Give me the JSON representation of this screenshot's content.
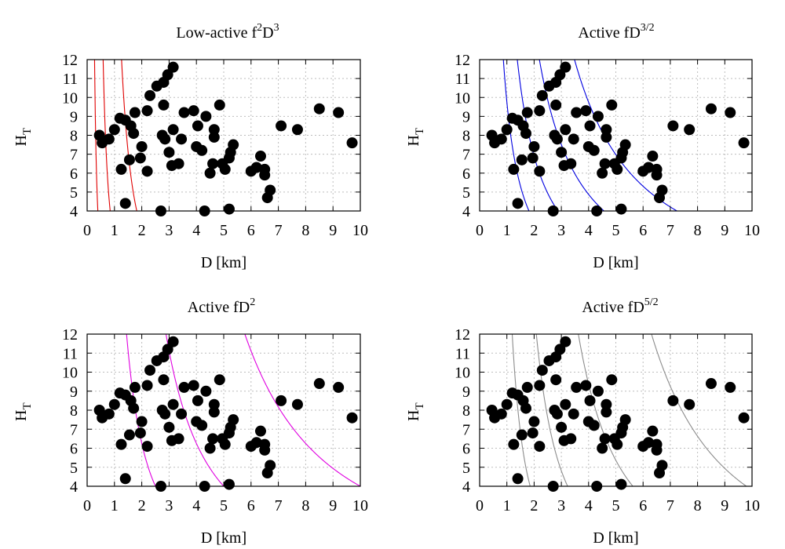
{
  "figure": {
    "panels": [
      {
        "title_main": "Low-active f",
        "title_sup1": "2",
        "title_mid": "D",
        "title_sup2": "3",
        "exponent": 3,
        "curve_color": "#e00000"
      },
      {
        "title_main": "Active fD",
        "title_sup1": "3/2",
        "title_mid": "",
        "title_sup2": "",
        "exponent": 1.5,
        "curve_color": "#0000e0"
      },
      {
        "title_main": "Active fD",
        "title_sup1": "2",
        "title_mid": "",
        "title_sup2": "",
        "exponent": 2,
        "curve_color": "#e000e0"
      },
      {
        "title_main": "Active fD",
        "title_sup1": "5/2",
        "title_mid": "",
        "title_sup2": "",
        "exponent": 2.5,
        "curve_color": "#8c8c8c"
      }
    ]
  },
  "chart_data": {
    "type": "scatter",
    "layout": "2x2 panels",
    "xlabel": "D [km]",
    "ylabel": "H",
    "ylabel_sub": "T",
    "xlim": [
      0,
      10
    ],
    "ylim": [
      4,
      12
    ],
    "xticks": [
      0,
      1,
      2,
      3,
      4,
      5,
      6,
      7,
      8,
      9,
      10
    ],
    "yticks": [
      4,
      5,
      6,
      7,
      8,
      9,
      10,
      11,
      12
    ],
    "grid": true,
    "points": [
      [
        0.45,
        8.0
      ],
      [
        0.55,
        7.6
      ],
      [
        0.8,
        7.8
      ],
      [
        1.0,
        8.3
      ],
      [
        1.2,
        8.9
      ],
      [
        1.4,
        8.8
      ],
      [
        1.6,
        8.5
      ],
      [
        1.7,
        8.1
      ],
      [
        1.75,
        9.2
      ],
      [
        1.25,
        6.2
      ],
      [
        1.55,
        6.7
      ],
      [
        1.95,
        6.8
      ],
      [
        2.0,
        7.4
      ],
      [
        2.2,
        6.1
      ],
      [
        2.2,
        9.3
      ],
      [
        2.3,
        10.1
      ],
      [
        2.55,
        10.6
      ],
      [
        2.8,
        10.8
      ],
      [
        2.95,
        11.2
      ],
      [
        3.15,
        11.6
      ],
      [
        2.8,
        9.6
      ],
      [
        2.75,
        8.0
      ],
      [
        2.85,
        7.8
      ],
      [
        3.0,
        7.1
      ],
      [
        3.1,
        6.4
      ],
      [
        3.15,
        8.3
      ],
      [
        3.35,
        6.5
      ],
      [
        3.45,
        7.8
      ],
      [
        3.55,
        9.2
      ],
      [
        3.9,
        9.3
      ],
      [
        4.0,
        7.4
      ],
      [
        4.05,
        8.5
      ],
      [
        4.2,
        7.2
      ],
      [
        4.35,
        9.0
      ],
      [
        4.5,
        6.0
      ],
      [
        4.6,
        6.5
      ],
      [
        4.65,
        7.9
      ],
      [
        4.65,
        8.3
      ],
      [
        4.85,
        9.6
      ],
      [
        4.95,
        6.5
      ],
      [
        5.05,
        6.2
      ],
      [
        5.2,
        6.8
      ],
      [
        5.25,
        7.1
      ],
      [
        5.35,
        7.5
      ],
      [
        6.0,
        6.1
      ],
      [
        6.2,
        6.3
      ],
      [
        6.35,
        6.9
      ],
      [
        6.5,
        6.2
      ],
      [
        6.5,
        5.9
      ],
      [
        6.6,
        4.7
      ],
      [
        6.7,
        5.1
      ],
      [
        7.1,
        8.5
      ],
      [
        7.7,
        8.3
      ],
      [
        8.5,
        9.4
      ],
      [
        9.2,
        9.2
      ],
      [
        9.7,
        7.6
      ],
      [
        1.4,
        4.4
      ],
      [
        2.7,
        4.0
      ],
      [
        4.3,
        4.0
      ],
      [
        5.2,
        4.1
      ]
    ],
    "curves": {
      "exponents": [
        3,
        1.5,
        2,
        2.5
      ],
      "constants": [
        [
          24,
          2.4,
          0.24
        ],
        [
          78,
          39,
          19.5,
          9.75
        ],
        [
          400,
          100,
          25
        ],
        [
          1200,
          300,
          75,
          18.75
        ]
      ]
    }
  }
}
